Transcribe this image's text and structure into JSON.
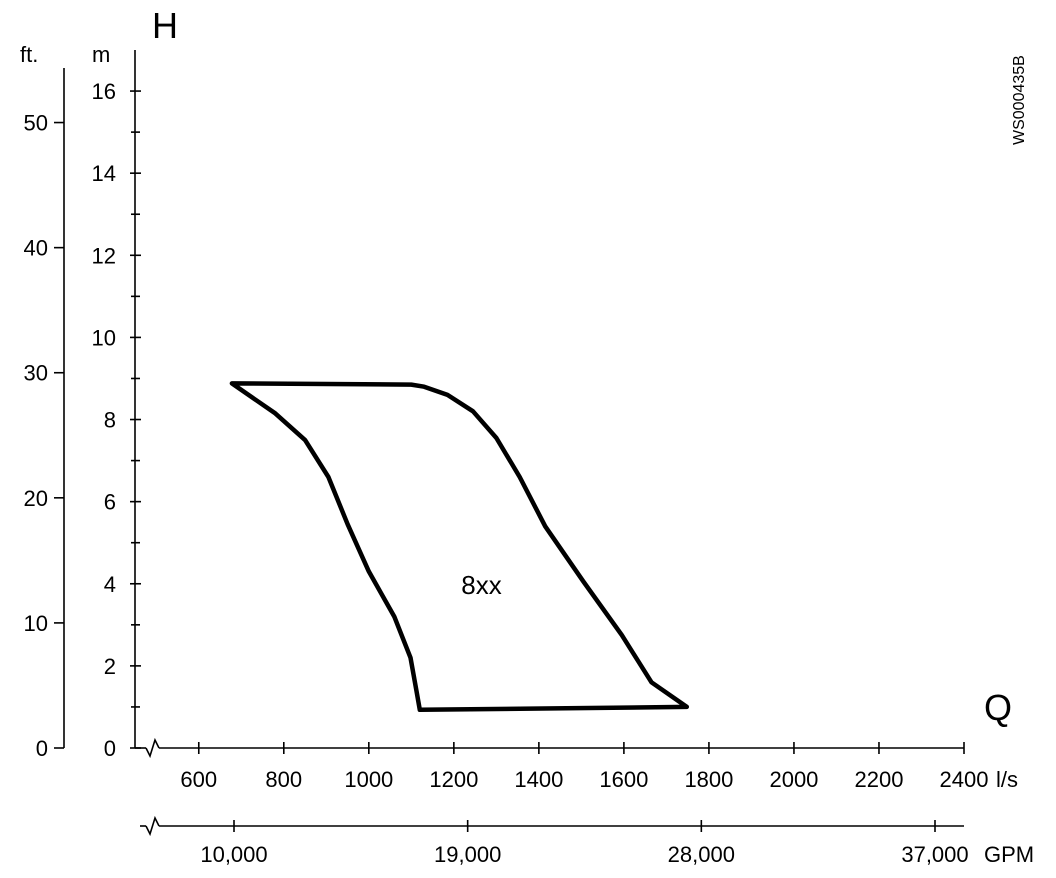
{
  "chart_data": {
    "type": "area",
    "vertical_axis_symbol": "H",
    "horizontal_axis_symbol": "Q",
    "figure_code": "WS000435B",
    "axes": {
      "head_m": {
        "unit": "m",
        "range": [
          0,
          17
        ],
        "major_ticks": [
          0,
          2,
          4,
          6,
          8,
          10,
          12,
          14,
          16
        ],
        "tick_labels": [
          "0",
          "2",
          "4",
          "6",
          "8",
          "10",
          "12",
          "14",
          "16"
        ],
        "minor_ticks": [
          1,
          3,
          5,
          7,
          9,
          11,
          13,
          15
        ]
      },
      "head_ft": {
        "unit": "ft.",
        "range": [
          0,
          55.8
        ],
        "major_ticks": [
          0,
          10,
          20,
          30,
          40,
          50
        ],
        "tick_labels": [
          "0",
          "10",
          "20",
          "30",
          "40",
          "50"
        ]
      },
      "flow_ls": {
        "unit": "l/s",
        "range": [
          450,
          2400
        ],
        "axis_break": true,
        "major_ticks": [
          600,
          800,
          1000,
          1200,
          1400,
          1600,
          1800,
          2000,
          2200,
          2400
        ],
        "tick_labels": [
          "600",
          "800",
          "1000",
          "1200",
          "1400",
          "1600",
          "1800",
          "2000",
          "2200",
          "2400"
        ]
      },
      "flow_gpm": {
        "unit": "GPM",
        "axis_break": true,
        "major_ticks": [
          10000,
          19000,
          28000,
          37000
        ],
        "tick_labels": [
          "10,000",
          "19,000",
          "28,000",
          "37,000"
        ]
      }
    },
    "series": [
      {
        "name": "8xx",
        "closed": true,
        "points": [
          [
            678,
            8.88
          ],
          [
            1100,
            8.85
          ],
          [
            1130,
            8.8
          ],
          [
            1185,
            8.6
          ],
          [
            1245,
            8.2
          ],
          [
            1300,
            7.55
          ],
          [
            1355,
            6.6
          ],
          [
            1415,
            5.4
          ],
          [
            1505,
            4.05
          ],
          [
            1595,
            2.75
          ],
          [
            1665,
            1.6
          ],
          [
            1748,
            1.0
          ],
          [
            1120,
            0.93
          ],
          [
            1112,
            1.4
          ],
          [
            1098,
            2.2
          ],
          [
            1060,
            3.2
          ],
          [
            1000,
            4.3
          ],
          [
            950,
            5.45
          ],
          [
            905,
            6.6
          ],
          [
            850,
            7.5
          ],
          [
            780,
            8.15
          ],
          [
            678,
            8.88
          ]
        ]
      }
    ],
    "annotations": [
      {
        "text": "8xx",
        "x": 1265,
        "y": 3.75
      }
    ],
    "grid": false,
    "legend": "none"
  }
}
